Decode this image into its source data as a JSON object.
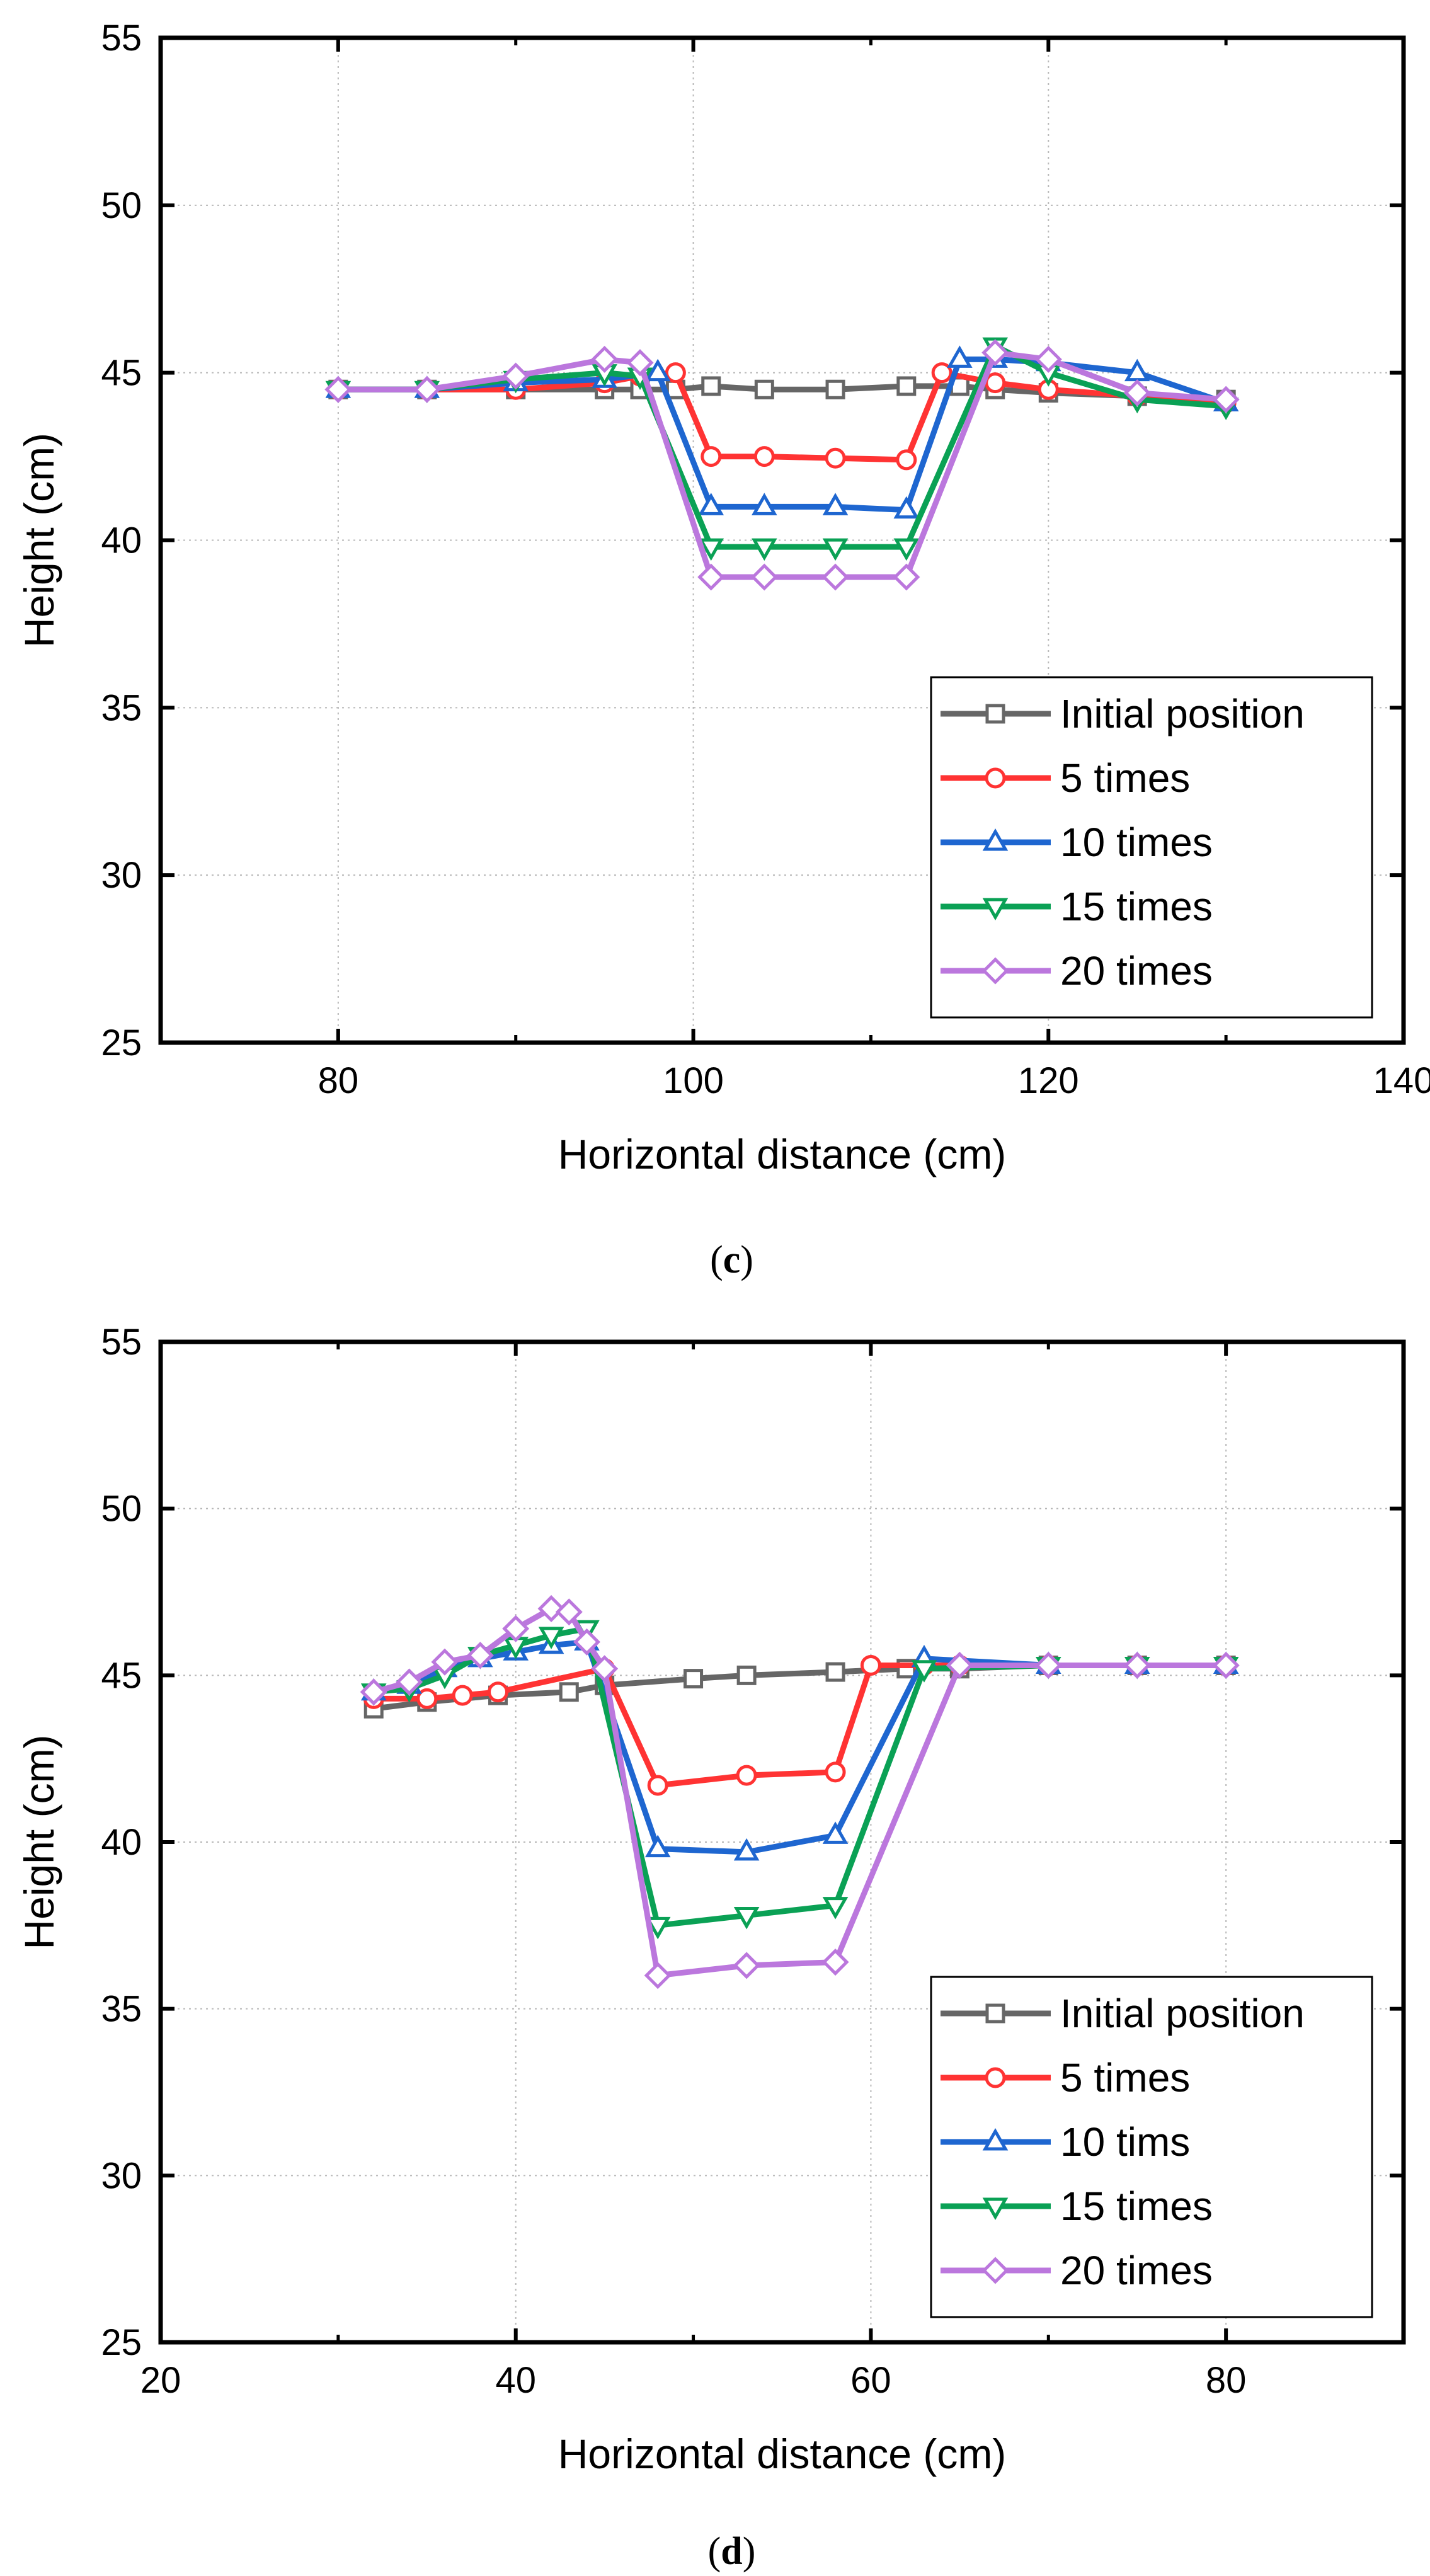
{
  "charts": [
    {
      "panel_label": "c",
      "panel_open": "(",
      "panel_close": ")"
    },
    {
      "panel_label": "d",
      "panel_open": "(",
      "panel_close": ")"
    }
  ],
  "chart_data": [
    {
      "type": "line",
      "panel": "c",
      "title": "",
      "xlabel": "Horizontal distance (cm)",
      "ylabel": "Height (cm)",
      "xlim": [
        70,
        140
      ],
      "ylim": [
        25,
        55
      ],
      "xticks": [
        80,
        100,
        120,
        140
      ],
      "xtick_labels": [
        "80",
        "100",
        "120",
        "140"
      ],
      "yticks": [
        25,
        30,
        35,
        40,
        45,
        50,
        55
      ],
      "ytick_labels": [
        "25",
        "30",
        "35",
        "40",
        "45",
        "50",
        "55"
      ],
      "grid": true,
      "legend_position": "bottom-right",
      "series": [
        {
          "name": "Initial position",
          "color": "#666666",
          "marker": "square",
          "x": [
            80,
            85,
            90,
            95,
            97,
            99,
            101,
            104,
            108,
            112,
            115,
            117,
            120,
            125,
            130
          ],
          "y": [
            44.5,
            44.5,
            44.5,
            44.5,
            44.5,
            44.5,
            44.6,
            44.5,
            44.5,
            44.6,
            44.6,
            44.5,
            44.4,
            44.3,
            44.2
          ]
        },
        {
          "name": "5 times",
          "color": "#ff3333",
          "marker": "circle",
          "x": [
            80,
            85,
            90,
            95,
            97,
            99,
            101,
            104,
            108,
            112,
            114,
            117,
            120,
            125,
            130
          ],
          "y": [
            44.5,
            44.5,
            44.5,
            44.7,
            44.9,
            45.0,
            42.5,
            42.5,
            42.45,
            42.4,
            45.0,
            44.7,
            44.5,
            44.3,
            44.1
          ]
        },
        {
          "name": "10 times",
          "color": "#1e66d0",
          "marker": "triangle-up",
          "x": [
            80,
            85,
            90,
            95,
            98,
            101,
            104,
            108,
            112,
            115,
            117,
            120,
            125,
            130
          ],
          "y": [
            44.5,
            44.5,
            44.7,
            44.8,
            45.0,
            41.0,
            41.0,
            41.0,
            40.9,
            45.4,
            45.4,
            45.3,
            45.0,
            44.1
          ]
        },
        {
          "name": "15 times",
          "color": "#0aa155",
          "marker": "triangle-down",
          "x": [
            80,
            85,
            90,
            95,
            97,
            101,
            104,
            108,
            112,
            117,
            120,
            125,
            130
          ],
          "y": [
            44.5,
            44.5,
            44.8,
            45.0,
            44.9,
            39.8,
            39.8,
            39.8,
            39.8,
            45.8,
            45.0,
            44.2,
            44.0
          ]
        },
        {
          "name": "20 times",
          "color": "#bb77dd",
          "marker": "diamond",
          "x": [
            80,
            85,
            90,
            95,
            97,
            101,
            104,
            108,
            112,
            117,
            120,
            125,
            130
          ],
          "y": [
            44.5,
            44.5,
            44.9,
            45.4,
            45.3,
            38.9,
            38.9,
            38.9,
            38.9,
            45.6,
            45.4,
            44.4,
            44.2
          ]
        }
      ]
    },
    {
      "type": "line",
      "panel": "d",
      "title": "",
      "xlabel": "Horizontal distance (cm)",
      "ylabel": "Height (cm)",
      "xlim": [
        20,
        90
      ],
      "ylim": [
        25,
        55
      ],
      "xticks": [
        20,
        40,
        60,
        80
      ],
      "xtick_labels": [
        "20",
        "40",
        "60",
        "80"
      ],
      "yticks": [
        25,
        30,
        35,
        40,
        45,
        50,
        55
      ],
      "ytick_labels": [
        "25",
        "30",
        "35",
        "40",
        "45",
        "50",
        "55"
      ],
      "grid": true,
      "legend_position": "bottom-right",
      "series": [
        {
          "name": "Initial position",
          "color": "#666666",
          "marker": "square",
          "x": [
            32,
            35,
            39,
            43,
            45,
            50,
            53,
            58,
            62,
            65,
            70,
            75,
            80
          ],
          "y": [
            44.0,
            44.2,
            44.4,
            44.5,
            44.7,
            44.9,
            45.0,
            45.1,
            45.2,
            45.2,
            45.3,
            45.3,
            45.3
          ]
        },
        {
          "name": "5 times",
          "color": "#ff3333",
          "marker": "circle",
          "x": [
            32,
            35,
            37,
            39,
            45,
            48,
            53,
            58,
            60,
            63,
            65,
            70,
            75,
            80
          ],
          "y": [
            44.3,
            44.3,
            44.4,
            44.5,
            45.2,
            41.7,
            42.0,
            42.1,
            45.3,
            45.3,
            45.3,
            45.3,
            45.3,
            45.3
          ]
        },
        {
          "name": "10 tims",
          "color": "#1e66d0",
          "marker": "triangle-up",
          "x": [
            32,
            34,
            36,
            38,
            40,
            42,
            44,
            48,
            53,
            58,
            63,
            70,
            75,
            80
          ],
          "y": [
            44.5,
            44.7,
            45.2,
            45.5,
            45.7,
            45.9,
            46.0,
            39.8,
            39.7,
            40.2,
            45.5,
            45.3,
            45.3,
            45.3
          ]
        },
        {
          "name": "15 times",
          "color": "#0aa155",
          "marker": "triangle-down",
          "x": [
            32,
            34,
            36,
            38,
            40,
            42,
            44,
            48,
            53,
            58,
            63,
            70,
            75,
            80
          ],
          "y": [
            44.5,
            44.6,
            45.0,
            45.6,
            45.9,
            46.2,
            46.4,
            37.5,
            37.8,
            38.1,
            45.2,
            45.3,
            45.3,
            45.3
          ]
        },
        {
          "name": "20 times",
          "color": "#bb77dd",
          "marker": "diamond",
          "x": [
            32,
            34,
            36,
            38,
            40,
            42,
            43,
            44,
            45,
            48,
            53,
            58,
            65,
            70,
            75,
            80
          ],
          "y": [
            44.5,
            44.8,
            45.4,
            45.6,
            46.4,
            47.0,
            46.9,
            46.0,
            45.2,
            36.0,
            36.3,
            36.4,
            45.3,
            45.3,
            45.3,
            45.3
          ]
        }
      ]
    }
  ]
}
